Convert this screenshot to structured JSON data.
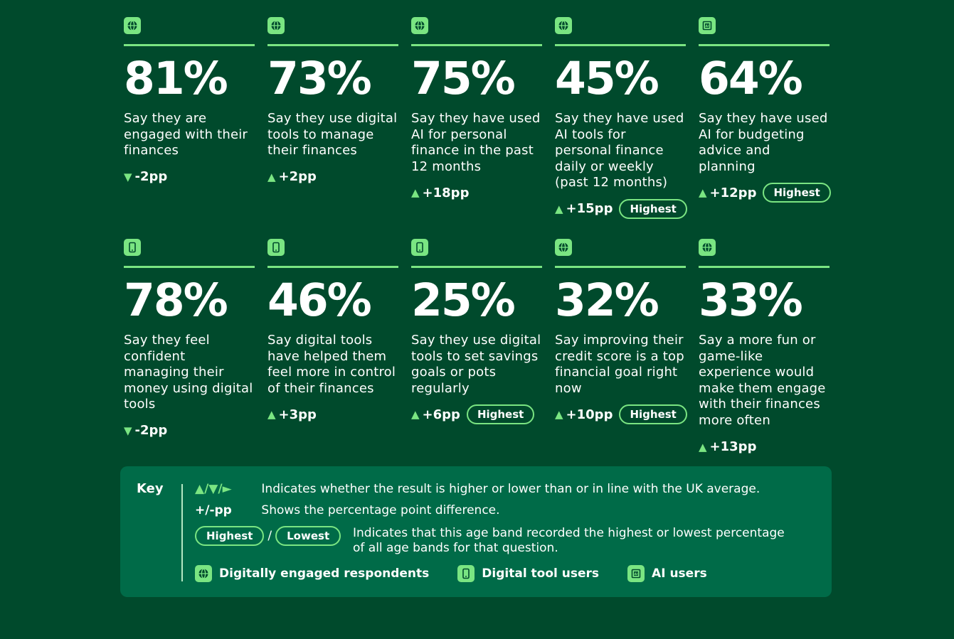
{
  "colors": {
    "background": "#004a2c",
    "accent": "#7ae582",
    "key_panel": "#006b48"
  },
  "row1": [
    {
      "icon": "globe-icon",
      "percent": "81%",
      "description": "Say they are engaged with their finances",
      "arrow": "▼",
      "change": "-2pp",
      "badge": ""
    },
    {
      "icon": "globe-icon",
      "percent": "73%",
      "description": "Say they use digital tools to manage their finances",
      "arrow": "▲",
      "change": "+2pp",
      "badge": ""
    },
    {
      "icon": "globe-icon",
      "percent": "75%",
      "description": "Say they have used AI for personal finance in the past 12 months",
      "arrow": "▲",
      "change": "+18pp",
      "badge": ""
    },
    {
      "icon": "globe-icon",
      "percent": "45%",
      "description": "Say they have used AI tools for personal finance daily or weekly (past 12 months)",
      "arrow": "▲",
      "change": "+15pp",
      "badge": "Highest"
    },
    {
      "icon": "ai-chip-icon",
      "percent": "64%",
      "description": "Say they have used AI for budgeting advice and planning",
      "arrow": "▲",
      "change": "+12pp",
      "badge": "Highest"
    }
  ],
  "row2": [
    {
      "icon": "phone-icon",
      "percent": "78%",
      "description": "Say they feel confident managing their money using digital tools",
      "arrow": "▼",
      "change": "-2pp",
      "badge": ""
    },
    {
      "icon": "phone-icon",
      "percent": "46%",
      "description": "Say digital tools have helped them feel more in control of their finances",
      "arrow": "▲",
      "change": "+3pp",
      "badge": ""
    },
    {
      "icon": "phone-icon",
      "percent": "25%",
      "description": "Say they use digital tools to set savings goals or pots regularly",
      "arrow": "▲",
      "change": "+6pp",
      "badge": "Highest"
    },
    {
      "icon": "globe-icon",
      "percent": "32%",
      "description": "Say improving their credit score is a top financial goal right now",
      "arrow": "▲",
      "change": "+10pp",
      "badge": "Highest"
    },
    {
      "icon": "globe-icon",
      "percent": "33%",
      "description": "Say a more fun or game-like experience would make them engage with their finances more often",
      "arrow": "▲",
      "change": "+13pp",
      "badge": ""
    }
  ],
  "key": {
    "title": "Key",
    "arrows_symbol": "▲/▼/►",
    "arrows_text": "Indicates whether the result is higher or lower than or in line with the UK average.",
    "pp_symbol": "+/-pp",
    "pp_text": "Shows the percentage point difference.",
    "highest_label": "Highest",
    "slash": "/",
    "lowest_label": "Lowest",
    "band_text_line1": "Indicates that this age band recorded the highest or lowest percentage",
    "band_text_line2": "of all age bands for that question.",
    "legend": [
      {
        "icon": "globe-icon",
        "label": "Digitally engaged respondents"
      },
      {
        "icon": "phone-icon",
        "label": "Digital tool users"
      },
      {
        "icon": "ai-chip-icon",
        "label": "AI users"
      }
    ]
  }
}
